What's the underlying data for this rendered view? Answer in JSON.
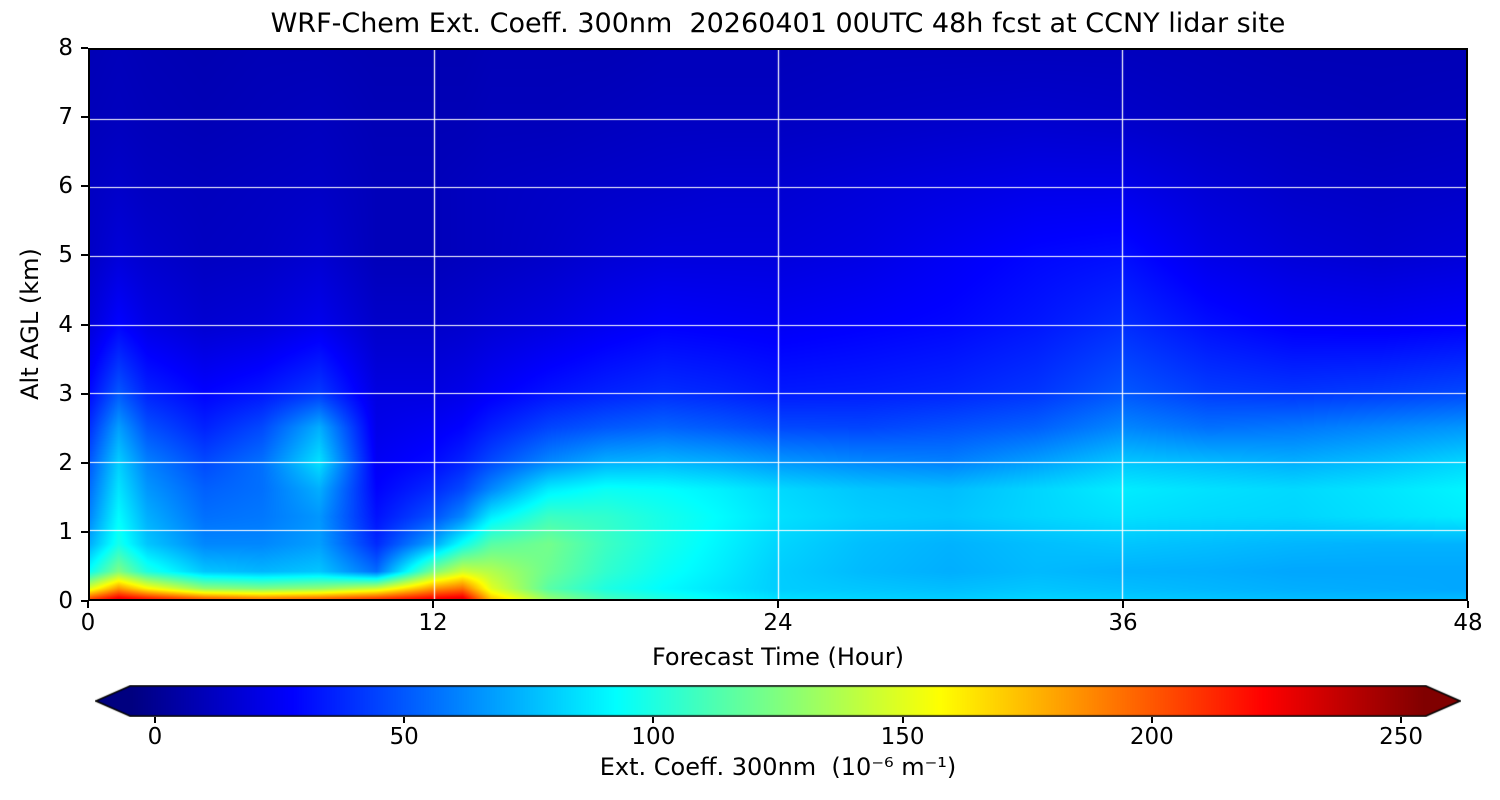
{
  "title": "WRF-Chem Ext. Coeff. 300nm  20260401 00UTC 48h fcst at CCNY lidar site",
  "axes": {
    "xlabel": "Forecast Time (Hour)",
    "ylabel": "Alt AGL (km)",
    "xtick_labels": [
      "0",
      "12",
      "24",
      "36",
      "48"
    ],
    "xtick_values": [
      0,
      12,
      24,
      36,
      48
    ],
    "ytick_labels": [
      "0",
      "1",
      "2",
      "3",
      "4",
      "5",
      "6",
      "7",
      "8"
    ],
    "ytick_values": [
      0,
      1,
      2,
      3,
      4,
      5,
      6,
      7,
      8
    ]
  },
  "colorbar": {
    "label": "Ext. Coeff. 300nm  (10⁻⁶ m⁻¹)",
    "tick_labels": [
      "0",
      "50",
      "100",
      "150",
      "200",
      "250"
    ],
    "tick_values": [
      0,
      50,
      100,
      150,
      200,
      250
    ],
    "vmin": -5,
    "vmax": 255,
    "extend": "both",
    "under_color": "#00007f",
    "over_color": "#7f0000"
  },
  "chart_data": {
    "type": "heatmap",
    "title": "WRF-Chem Ext. Coeff. 300nm  20260401 00UTC 48h fcst at CCNY lidar site",
    "xlabel": "Forecast Time (Hour)",
    "ylabel": "Alt AGL (km)",
    "units": "1e-6 m^-1",
    "colormap": "jet",
    "clim": [
      -5,
      255
    ],
    "xlim": [
      0,
      48
    ],
    "ylim": [
      0,
      8
    ],
    "grid": true,
    "grid_color": "#ffffff",
    "x_hours": [
      0,
      1,
      2,
      4,
      6,
      8,
      10,
      12,
      13,
      14,
      16,
      18,
      20,
      22,
      24,
      27,
      30,
      33,
      36,
      39,
      42,
      45,
      48
    ],
    "y_km": [
      0,
      0.15,
      0.4,
      0.8,
      1.2,
      1.6,
      2.0,
      2.5,
      3.0,
      4.0,
      5.0,
      6.0,
      7.0,
      8.0
    ],
    "values": [
      [
        205,
        228,
        218,
        200,
        192,
        198,
        210,
        225,
        230,
        172,
        130,
        110,
        100,
        92,
        85,
        82,
        80,
        82,
        80,
        78,
        76,
        75,
        75
      ],
      [
        150,
        185,
        160,
        130,
        125,
        130,
        145,
        185,
        195,
        150,
        115,
        100,
        92,
        86,
        80,
        78,
        76,
        78,
        76,
        74,
        72,
        71,
        70
      ],
      [
        95,
        125,
        100,
        78,
        74,
        78,
        55,
        125,
        145,
        138,
        120,
        105,
        95,
        88,
        80,
        75,
        72,
        75,
        73,
        72,
        70,
        70,
        70
      ],
      [
        72,
        98,
        78,
        62,
        62,
        68,
        38,
        70,
        95,
        115,
        122,
        108,
        98,
        90,
        82,
        76,
        73,
        76,
        78,
        76,
        74,
        73,
        73
      ],
      [
        62,
        92,
        72,
        56,
        58,
        66,
        32,
        48,
        62,
        88,
        108,
        105,
        98,
        92,
        85,
        80,
        78,
        82,
        85,
        83,
        82,
        85,
        88
      ],
      [
        56,
        86,
        66,
        52,
        56,
        72,
        28,
        38,
        46,
        62,
        88,
        95,
        93,
        89,
        83,
        78,
        76,
        82,
        88,
        85,
        83,
        86,
        90
      ],
      [
        50,
        80,
        60,
        46,
        56,
        85,
        25,
        30,
        36,
        46,
        62,
        72,
        74,
        71,
        66,
        62,
        60,
        68,
        78,
        75,
        72,
        76,
        82
      ],
      [
        40,
        68,
        48,
        36,
        46,
        72,
        22,
        25,
        28,
        35,
        45,
        50,
        53,
        50,
        46,
        45,
        48,
        52,
        62,
        56,
        58,
        62,
        66
      ],
      [
        30,
        50,
        36,
        28,
        33,
        42,
        20,
        20,
        22,
        26,
        32,
        36,
        39,
        37,
        34,
        35,
        37,
        41,
        50,
        43,
        41,
        43,
        46
      ],
      [
        18,
        28,
        21,
        16,
        18,
        23,
        14,
        14,
        15,
        17,
        20,
        24,
        27,
        26,
        25,
        27,
        29,
        33,
        39,
        31,
        26,
        25,
        27
      ],
      [
        13,
        18,
        15,
        12,
        13,
        16,
        10,
        10,
        11,
        12,
        14,
        17,
        19,
        19,
        19,
        21,
        25,
        29,
        31,
        22,
        18,
        16,
        18
      ],
      [
        12,
        14,
        12,
        11,
        12,
        13,
        10,
        10,
        11,
        12,
        13,
        14,
        15,
        16,
        16,
        18,
        20,
        22,
        22,
        17,
        14,
        13,
        14
      ],
      [
        10,
        11,
        10,
        9,
        10,
        11,
        9,
        9,
        9,
        10,
        10,
        11,
        12,
        12,
        12,
        13,
        14,
        15,
        14,
        12,
        11,
        10,
        11
      ],
      [
        9,
        10,
        9,
        8,
        9,
        9,
        8,
        8,
        8,
        9,
        9,
        9,
        10,
        10,
        10,
        11,
        11,
        11,
        11,
        10,
        9,
        9,
        9
      ]
    ]
  }
}
